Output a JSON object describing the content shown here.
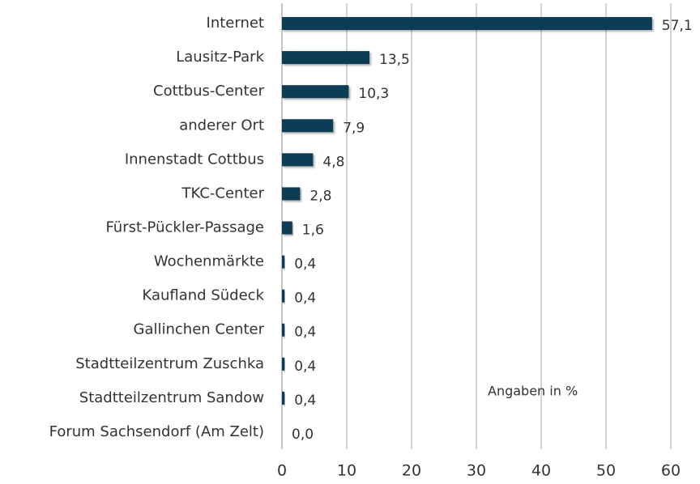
{
  "chart_data": {
    "type": "bar",
    "orientation": "horizontal",
    "categories": [
      "Internet",
      "Lausitz-Park",
      "Cottbus-Center",
      "anderer Ort",
      "Innenstadt Cottbus",
      "TKC-Center",
      "Fürst-Pückler-Passage",
      "Wochenmärkte",
      "Kaufland Südeck",
      "Gallinchen Center",
      "Stadtteilzentrum Zuschka",
      "Stadtteilzentrum Sandow",
      "Forum Sachsendorf (Am Zelt)"
    ],
    "values": [
      57.1,
      13.5,
      10.3,
      7.9,
      4.8,
      2.8,
      1.6,
      0.4,
      0.4,
      0.4,
      0.4,
      0.4,
      0.0
    ],
    "value_labels": [
      "57,1",
      "13,5",
      "10,3",
      "7,9",
      "4,8",
      "2,8",
      "1,6",
      "0,4",
      "0,4",
      "0,4",
      "0,4",
      "0,4",
      "0,0"
    ],
    "color": "#0d3d56",
    "xlim": [
      0,
      60
    ],
    "xticks": [
      0,
      10,
      20,
      30,
      40,
      50,
      60
    ],
    "grid": true,
    "annotation": "Angaben in %"
  }
}
